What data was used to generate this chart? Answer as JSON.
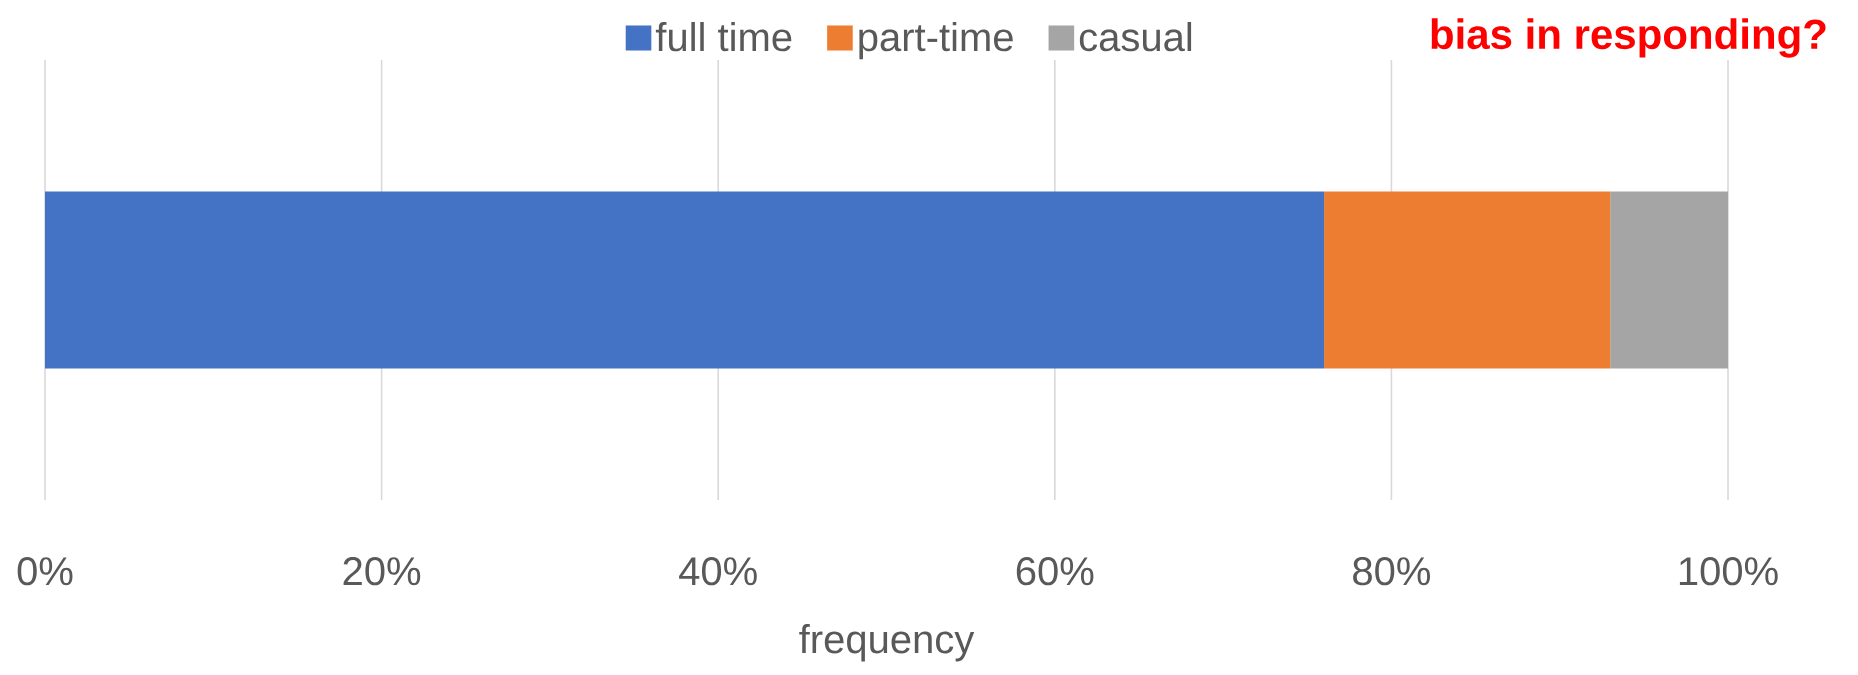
{
  "chart_data": {
    "type": "bar",
    "orientation": "horizontal",
    "stacked": true,
    "categories": [
      null
    ],
    "series": [
      {
        "name": "full time",
        "color": "#4472c4",
        "values": [
          76
        ]
      },
      {
        "name": "part-time",
        "color": "#ed7d31",
        "values": [
          17
        ]
      },
      {
        "name": "casual",
        "color": "#a5a5a5",
        "values": [
          7
        ]
      }
    ],
    "xlabel": "frequency",
    "xlim": [
      0,
      100
    ],
    "xticks": [
      {
        "value": 0,
        "label": "0%"
      },
      {
        "value": 20,
        "label": "20%"
      },
      {
        "value": 40,
        "label": "40%"
      },
      {
        "value": 60,
        "label": "60%"
      },
      {
        "value": 80,
        "label": "80%"
      },
      {
        "value": 100,
        "label": "100%"
      }
    ],
    "grid": "x",
    "legend": "top",
    "annotations": [
      "bias in responding?"
    ]
  }
}
